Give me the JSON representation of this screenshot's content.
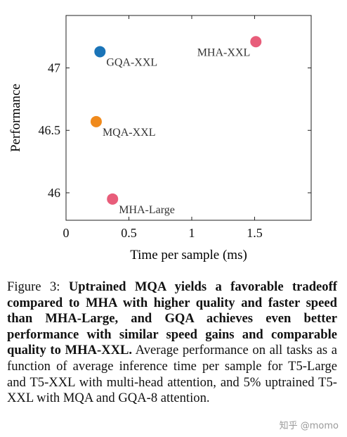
{
  "chart_data": {
    "type": "scatter",
    "title": "",
    "xlabel": "Time per sample (ms)",
    "ylabel": "Performance",
    "xlim": [
      0,
      1.95
    ],
    "ylim": [
      45.78,
      47.42
    ],
    "x_ticks": [
      0,
      0.5,
      1,
      1.5
    ],
    "x_tick_labels": [
      "0",
      "0.5",
      "1",
      "1.5"
    ],
    "y_ticks": [
      46,
      46.5,
      47
    ],
    "y_tick_labels": [
      "46",
      "46.5",
      "47"
    ],
    "grid": false,
    "points": [
      {
        "label": "GQA-XXL",
        "x": 0.27,
        "y": 47.13,
        "color": "#1a74b8",
        "label_side": "right-below"
      },
      {
        "label": "MHA-XXL",
        "x": 1.51,
        "y": 47.21,
        "color": "#e85d7a",
        "label_side": "left-below"
      },
      {
        "label": "MQA-XXL",
        "x": 0.24,
        "y": 46.57,
        "color": "#f08a1c",
        "label_side": "right-below"
      },
      {
        "label": "MHA-Large",
        "x": 0.37,
        "y": 45.95,
        "color": "#e85d7a",
        "label_side": "right-below"
      }
    ]
  },
  "caption": {
    "prefix": "Figure 3: ",
    "bold": "Uptrained MQA yields a favorable tradeoff compared to MHA with higher quality and faster speed than MHA-Large, and GQA achieves even better performance with similar speed gains and comparable quality to MHA-XXL.",
    "rest": " Average performance on all tasks as a function of average inference time per sample for T5-Large and T5-XXL with multi-head attention, and 5% uptrained T5-XXL with MQA and GQA-8 attention."
  },
  "watermark": "知乎 @momo"
}
